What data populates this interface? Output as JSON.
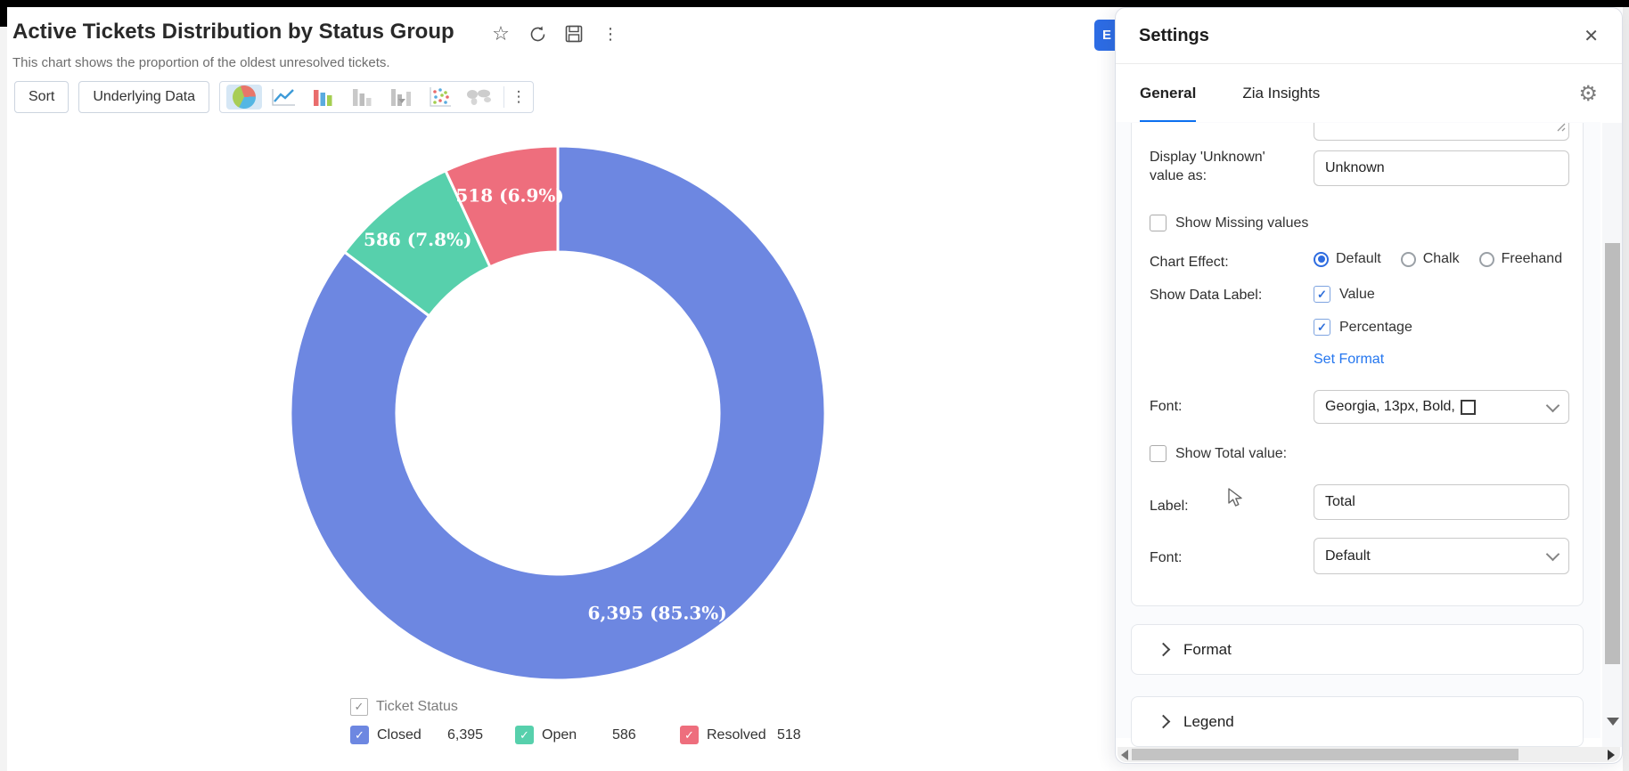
{
  "chart_view": {
    "title": "Active Tickets Distribution by Status Group",
    "subtitle": "This chart shows the proportion of the oldest unresolved tickets.",
    "title_action_icons": [
      "star-icon",
      "refresh-icon",
      "save-icon",
      "more-vertical-icon"
    ],
    "toolbar": {
      "sort_label": "Sort",
      "underlying_data_label": "Underlying Data",
      "chart_types": [
        {
          "name": "pie",
          "selected": true
        },
        {
          "name": "line",
          "selected": false
        },
        {
          "name": "bar",
          "selected": false
        },
        {
          "name": "stacked-bar",
          "selected": false
        },
        {
          "name": "combo-bar",
          "selected": false
        },
        {
          "name": "scatter",
          "selected": false
        },
        {
          "name": "map",
          "selected": false
        }
      ],
      "more_icon": "more-vertical-icon"
    },
    "edit_button_visible_text": "E"
  },
  "chart_data": {
    "type": "pie",
    "subtype": "donut",
    "title": "Active Tickets Distribution by Status Group",
    "series_name": "Ticket Status",
    "slices": [
      {
        "name": "Closed",
        "value": 6395,
        "display_value": "6,395",
        "percentage": 85.3,
        "label": "6,395 (85.3%)",
        "color": "#6d87e1"
      },
      {
        "name": "Open",
        "value": 586,
        "display_value": "586",
        "percentage": 7.8,
        "label": "586 (7.8%)",
        "color": "#57d0ac"
      },
      {
        "name": "Resolved",
        "value": 518,
        "display_value": "518",
        "percentage": 6.9,
        "label": "518 (6.9%)",
        "color": "#ee6e7d"
      }
    ],
    "start_angle_deg_from_top": 0,
    "direction": "clockwise",
    "outer_radius_px": 300,
    "inner_radius_px": 181,
    "data_label_style": "value (percentage), white, bold, serif",
    "legend_position": "bottom",
    "legend_series_checkbox_checked": true,
    "legend_item_checkboxes_checked": true
  },
  "settings_panel": {
    "title": "Settings",
    "close_icon": "close-icon",
    "tabs": [
      {
        "label": "General",
        "active": true
      },
      {
        "label": "Zia Insights",
        "active": false
      }
    ],
    "gear_icon": "gear-icon",
    "fields": {
      "display_unknown": {
        "label": "Display 'Unknown' value as:",
        "value": "Unknown"
      },
      "show_missing": {
        "label": "Show Missing values",
        "checked": false
      },
      "chart_effect": {
        "label": "Chart Effect:",
        "options": [
          "Default",
          "Chalk",
          "Freehand"
        ],
        "selected": "Default"
      },
      "show_data_label": {
        "label": "Show Data Label:",
        "options": [
          {
            "label": "Value",
            "checked": true
          },
          {
            "label": "Percentage",
            "checked": true
          }
        ]
      },
      "set_format_link": "Set Format",
      "data_label_font": {
        "label": "Font:",
        "value": "Georgia, 13px, Bold,"
      },
      "show_total": {
        "label": "Show Total value:",
        "checked": false
      },
      "total_label": {
        "label": "Label:",
        "value": "Total"
      },
      "total_font": {
        "label": "Font:",
        "value": "Default"
      }
    },
    "sections": [
      {
        "label": "Format"
      },
      {
        "label": "Legend"
      }
    ]
  }
}
